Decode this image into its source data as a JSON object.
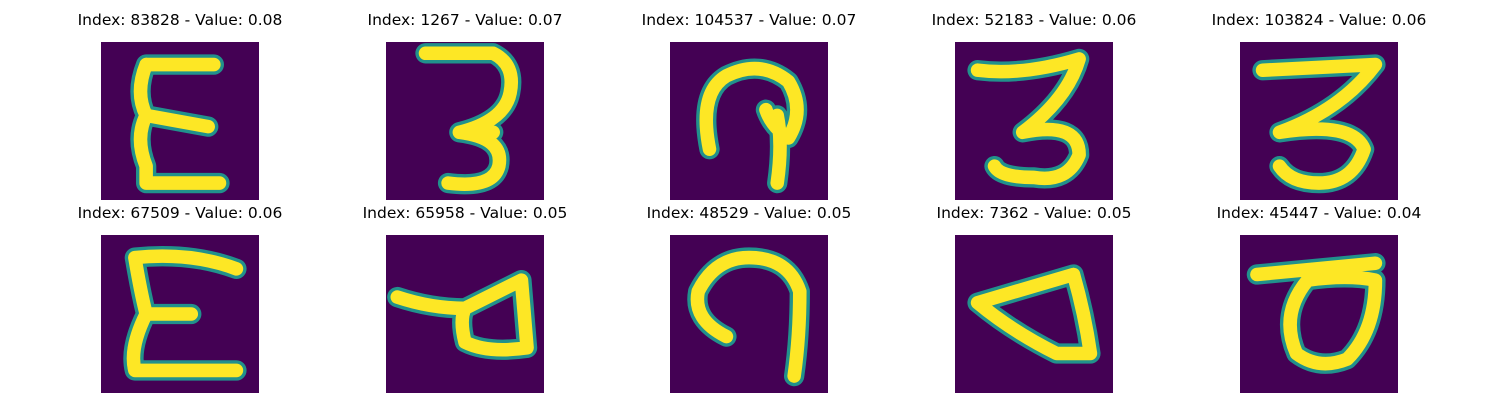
{
  "colors": {
    "background": "#440154",
    "mid": "#21918c",
    "stroke": "#fde725"
  },
  "samples": [
    {
      "title": "Index: 83828 - Value: 0.08",
      "glyph": "epsilon"
    },
    {
      "title": "Index: 1267 - Value: 0.07",
      "glyph": "three-flat"
    },
    {
      "title": "Index: 104537 - Value: 0.07",
      "glyph": "hook"
    },
    {
      "title": "Index: 52183 - Value: 0.06",
      "glyph": "three"
    },
    {
      "title": "Index: 103824 - Value: 0.06",
      "glyph": "three-bold"
    },
    {
      "title": "Index: 67509 - Value: 0.06",
      "glyph": "epsilon-wide"
    },
    {
      "title": "Index: 65958 - Value: 0.05",
      "glyph": "triangle-tail"
    },
    {
      "title": "Index: 48529 - Value: 0.05",
      "glyph": "c-hook"
    },
    {
      "title": "Index: 7362 - Value: 0.05",
      "glyph": "triangle"
    },
    {
      "title": "Index: 45447 - Value: 0.04",
      "glyph": "loop-d"
    }
  ]
}
